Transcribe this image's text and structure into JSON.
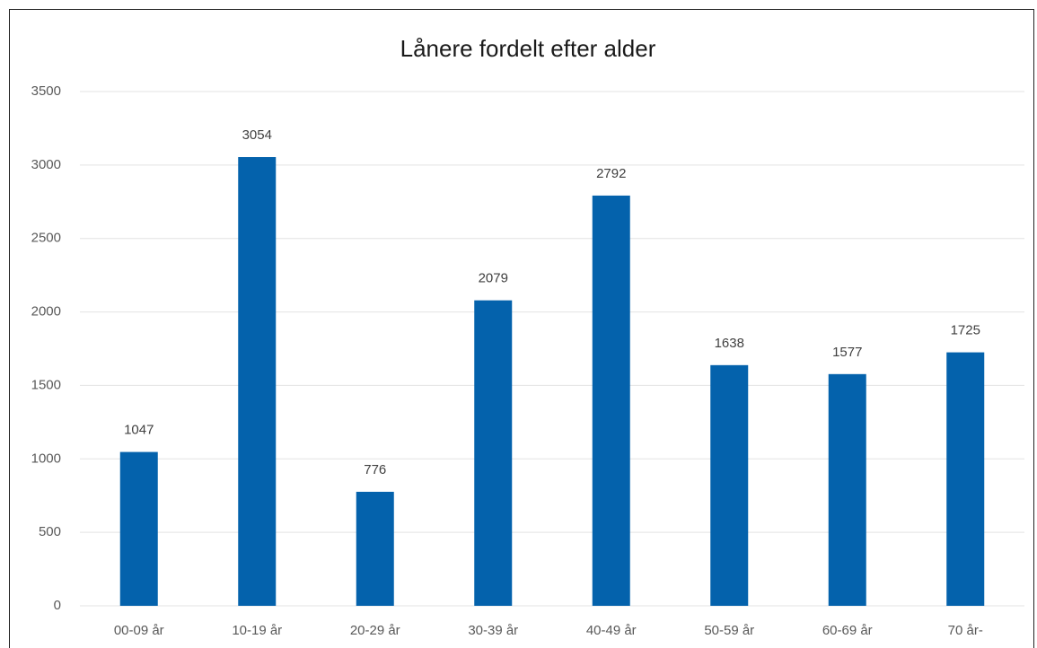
{
  "chart_data": {
    "type": "bar",
    "title": "Lånere fordelt efter alder",
    "categories": [
      "00-09 år",
      "10-19 år",
      "20-29 år",
      "30-39 år",
      "40-49 år",
      "50-59 år",
      "60-69 år",
      "70 år-"
    ],
    "values": [
      1047,
      3054,
      776,
      2079,
      2792,
      1638,
      1577,
      1725
    ],
    "color": "#0462ac",
    "ylim": [
      0,
      3500
    ],
    "yticks": [
      0,
      500,
      1000,
      1500,
      2000,
      2500,
      3000,
      3500
    ],
    "grid": true
  }
}
